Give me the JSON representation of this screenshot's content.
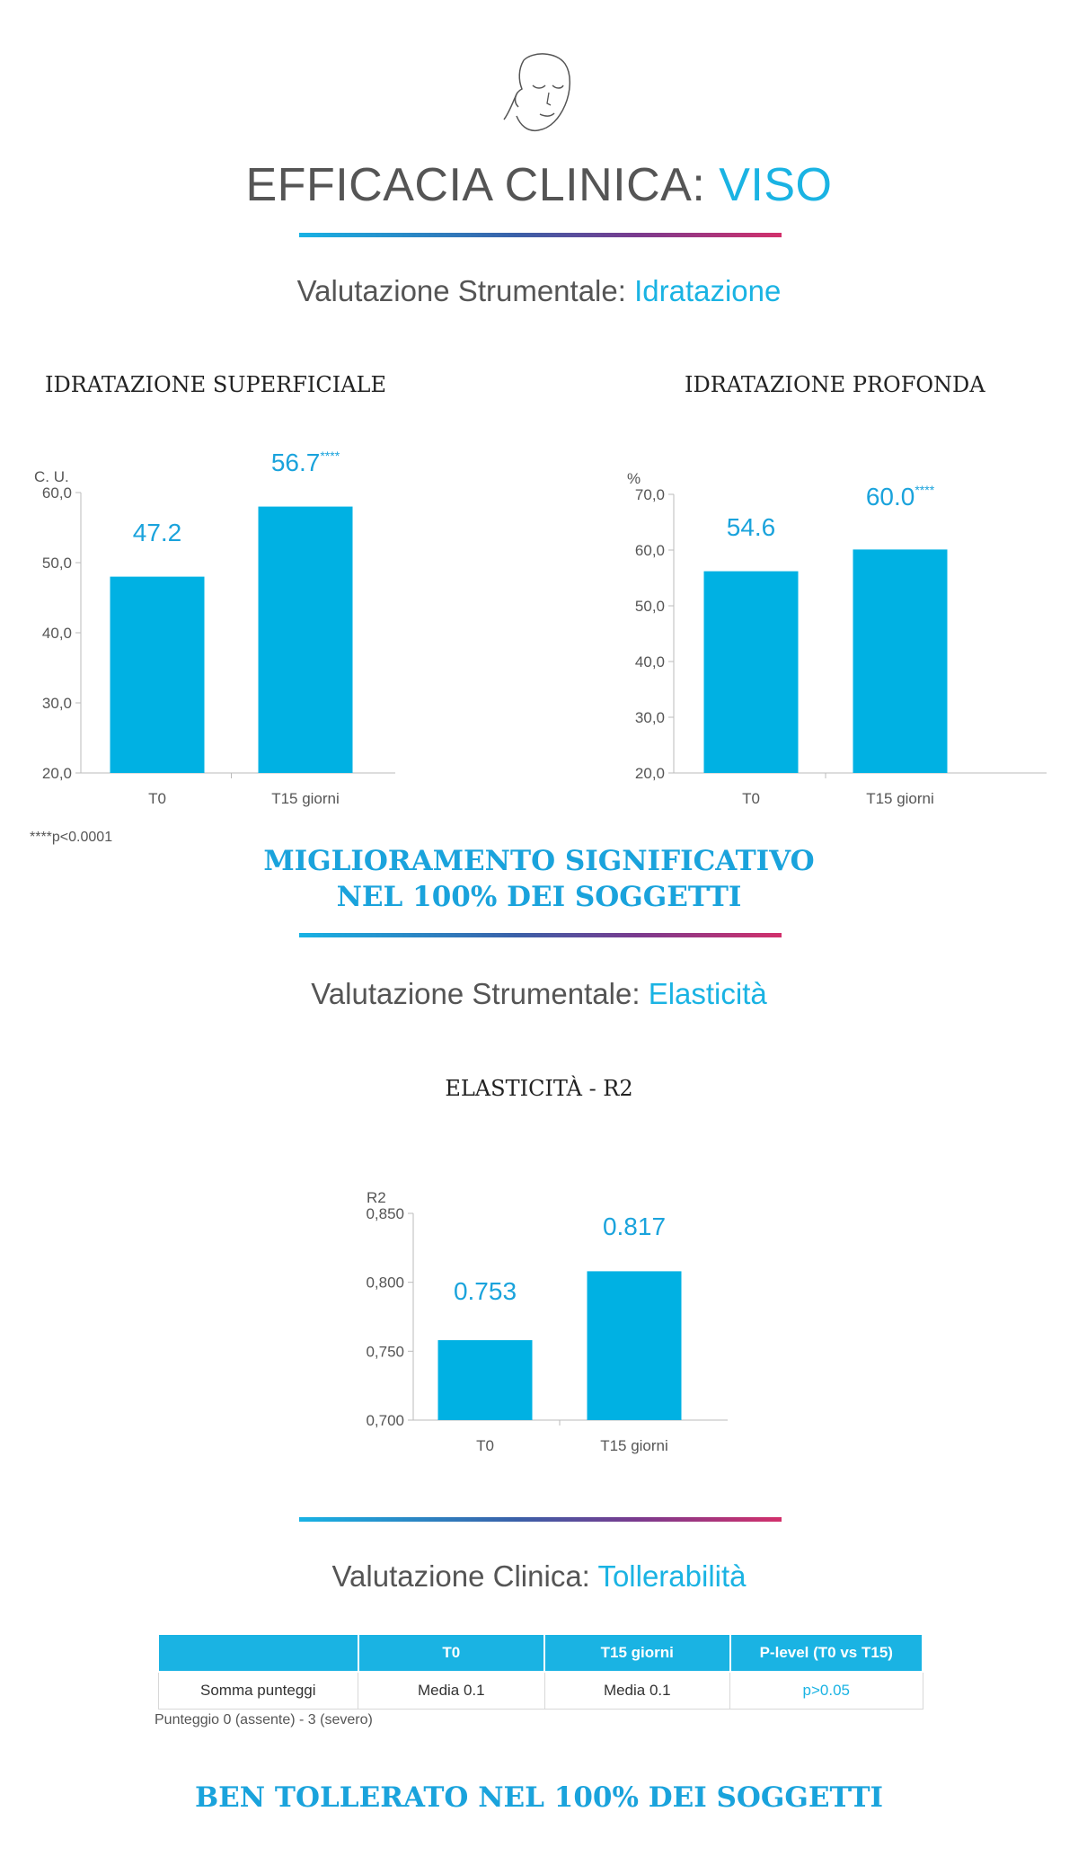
{
  "header": {
    "title_main": "EFFICACIA CLINICA:",
    "title_accent": "VISO"
  },
  "section1": {
    "label": "Valutazione Strumentale:",
    "accent": "Idratazione"
  },
  "section2": {
    "label": "Valutazione Strumentale:",
    "accent": "Elasticità"
  },
  "section3": {
    "label": "Valutazione Clinica:",
    "accent": "Tollerabilità"
  },
  "footnote": "****p<0.0001",
  "conclusion1": {
    "line1": "MIGLIORAMENTO SIGNIFICATIVO",
    "line2": "NEL 100% DEI SOGGETTI"
  },
  "conclusion2": "BEN TOLLERATO NEL 100% DEI SOGGETTI",
  "colors": {
    "accent": "#1ab3e3",
    "bar": "#00b1e3",
    "label": "#1aa3dc",
    "gradient_end": "#d2306b"
  },
  "icons": {
    "face": "face-outline-icon"
  },
  "table": {
    "headers": [
      "",
      "T0",
      "T15 giorni",
      "P-level (T0 vs T15)"
    ],
    "rows": [
      [
        "Somma punteggi",
        "Media 0.1",
        "Media 0.1",
        "p>0.05"
      ]
    ],
    "note": "Punteggio 0 (assente) - 3 (severo)"
  },
  "chart_data": [
    {
      "type": "bar",
      "title": "IDRATAZIONE SUPERFICIALE",
      "ylabel": "C. U.",
      "categories": [
        "T0",
        "T15 giorni"
      ],
      "values": [
        47.2,
        56.7
      ],
      "value_labels": [
        "47.2",
        "56.7"
      ],
      "significance": [
        "",
        "****"
      ],
      "bar_heights": [
        48.0,
        58.0
      ],
      "ylim": [
        20,
        60
      ],
      "yticks": [
        "20,0",
        "30,0",
        "40,0",
        "50,0",
        "60,0"
      ]
    },
    {
      "type": "bar",
      "title": "IDRATAZIONE PROFONDA",
      "ylabel": "%",
      "categories": [
        "T0",
        "T15 giorni"
      ],
      "values": [
        54.6,
        60.0
      ],
      "value_labels": [
        "54.6",
        "60.0"
      ],
      "significance": [
        "",
        "****"
      ],
      "bar_heights": [
        56.2,
        60.1
      ],
      "ylim": [
        20,
        70
      ],
      "yticks": [
        "20,0",
        "30,0",
        "40,0",
        "50,0",
        "60,0",
        "70,0"
      ]
    },
    {
      "type": "bar",
      "title": "ELASTICITÀ - R2",
      "ylabel": "R2",
      "categories": [
        "T0",
        "T15 giorni"
      ],
      "values": [
        0.753,
        0.817
      ],
      "value_labels": [
        "0.753",
        "0.817"
      ],
      "significance": [
        "",
        ""
      ],
      "bar_heights": [
        0.758,
        0.808
      ],
      "ylim": [
        0.7,
        0.85
      ],
      "yticks": [
        "0,700",
        "0,750",
        "0,800",
        "0,850"
      ]
    }
  ]
}
